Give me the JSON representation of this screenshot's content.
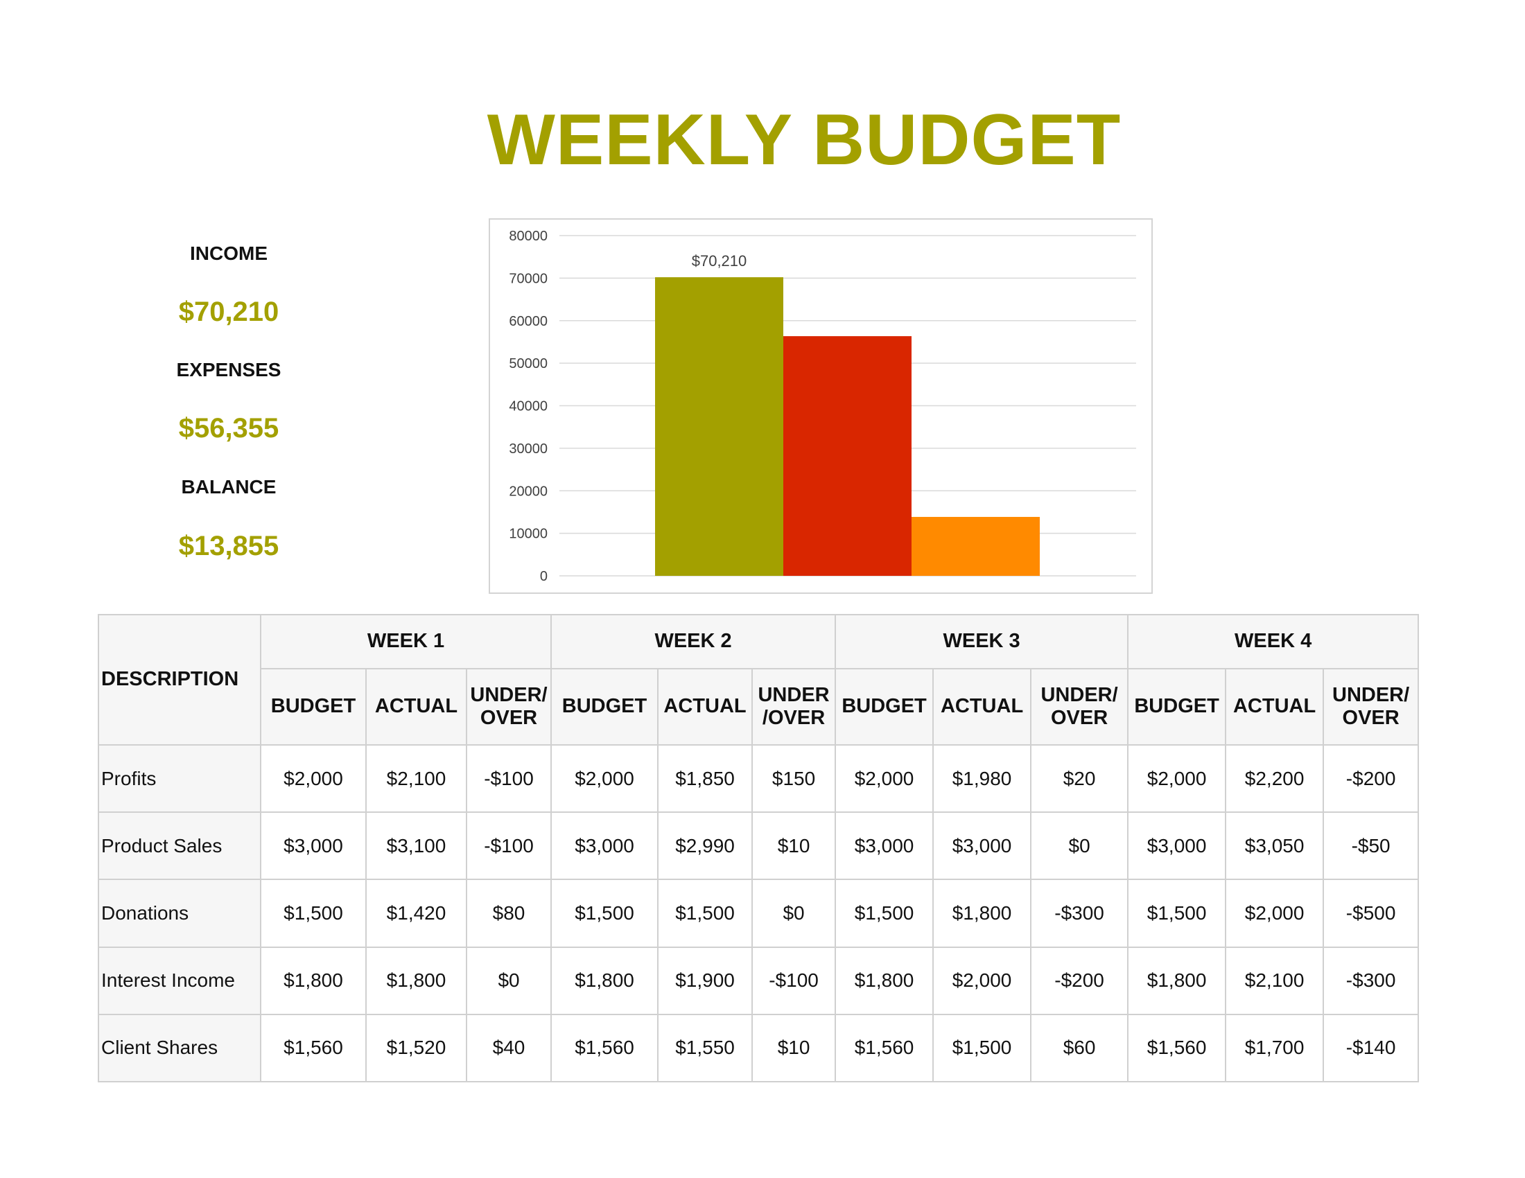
{
  "title": "WEEKLY BUDGET",
  "summary": {
    "income_label": "INCOME",
    "income_value": "$70,210",
    "expenses_label": "EXPENSES",
    "expenses_value": "$56,355",
    "balance_label": "BALANCE",
    "balance_value": "$13,855"
  },
  "chart_data": {
    "type": "bar",
    "title": "",
    "xlabel": "",
    "ylabel": "",
    "ylim": [
      0,
      80000
    ],
    "yticks": [
      0,
      10000,
      20000,
      30000,
      40000,
      50000,
      60000,
      70000,
      80000
    ],
    "grid": true,
    "legend": "none",
    "series": [
      {
        "values": [
          70210
        ],
        "color": "#a3a000",
        "data_label": "$70,210"
      },
      {
        "values": [
          56355
        ],
        "color": "#d92600",
        "data_label": ""
      },
      {
        "values": [
          13855
        ],
        "color": "#ff8a00",
        "data_label": ""
      }
    ]
  },
  "table": {
    "description_header": "DESCRIPTION",
    "weeks": [
      "WEEK 1",
      "WEEK 2",
      "WEEK 3",
      "WEEK 4"
    ],
    "subheaders": [
      [
        "BUDGET",
        "ACTUAL",
        "UNDER/",
        "OVER"
      ],
      [
        "BUDGET",
        "ACTUAL",
        "UNDER",
        "/OVER"
      ],
      [
        "BUDGET",
        "ACTUAL",
        "UNDER/",
        "OVER"
      ],
      [
        "BUDGET",
        "ACTUAL",
        "UNDER/",
        "OVER"
      ]
    ],
    "rows": [
      {
        "description": "Profits",
        "values": [
          "$2,000",
          "$2,100",
          "-$100",
          "$2,000",
          "$1,850",
          "$150",
          "$2,000",
          "$1,980",
          "$20",
          "$2,000",
          "$2,200",
          "-$200"
        ]
      },
      {
        "description": "Product Sales",
        "values": [
          "$3,000",
          "$3,100",
          "-$100",
          "$3,000",
          "$2,990",
          "$10",
          "$3,000",
          "$3,000",
          "$0",
          "$3,000",
          "$3,050",
          "-$50"
        ]
      },
      {
        "description": "Donations",
        "values": [
          "$1,500",
          "$1,420",
          "$80",
          "$1,500",
          "$1,500",
          "$0",
          "$1,500",
          "$1,800",
          "-$300",
          "$1,500",
          "$2,000",
          "-$500"
        ]
      },
      {
        "description": "Interest Income",
        "values": [
          "$1,800",
          "$1,800",
          "$0",
          "$1,800",
          "$1,900",
          "-$100",
          "$1,800",
          "$2,000",
          "-$200",
          "$1,800",
          "$2,100",
          "-$300"
        ]
      },
      {
        "description": "Client Shares",
        "values": [
          "$1,560",
          "$1,520",
          "$40",
          "$1,560",
          "$1,550",
          "$10",
          "$1,560",
          "$1,500",
          "$60",
          "$1,560",
          "$1,700",
          "-$140"
        ]
      }
    ]
  }
}
